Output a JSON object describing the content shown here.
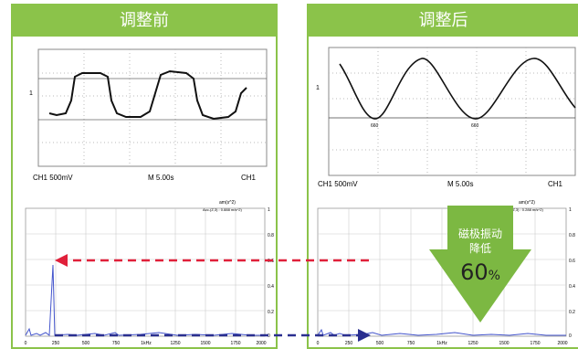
{
  "left": {
    "title": "调整前",
    "scope": {
      "channel": "CH1  500mV",
      "time": "M 5.00s",
      "trigger": "CH1",
      "marker": "1"
    },
    "spectrum": {
      "unit": "am(s^2)",
      "readout": "Acc-(Z,3) : 0.888 m/s^2)",
      "y_ticks": [
        "1",
        "0.8",
        "0.6",
        "0.4",
        "0.2",
        "0"
      ],
      "x_ticks": [
        "0",
        "250",
        "500",
        "750",
        "1kHz",
        "1250",
        "1500",
        "1750",
        "2000"
      ]
    }
  },
  "right": {
    "title": "调整后",
    "scope": {
      "channel": "CH1  500mV",
      "time": "M 5.00s",
      "trigger": "CH1",
      "marker": "1",
      "annotation_a": "660",
      "annotation_b": "660"
    },
    "spectrum": {
      "unit": "am(s^2)",
      "readout": "Acc-(Z,3) : 0.288 m/s^2)",
      "y_ticks": [
        "1",
        "0.8",
        "0.6",
        "0.4",
        "0.2",
        "0"
      ],
      "x_ticks": [
        "0",
        "250",
        "500",
        "750",
        "1kHz",
        "1250",
        "1500",
        "1750",
        "2000"
      ]
    }
  },
  "callout": {
    "line1": "磁极振动",
    "line2": "降低",
    "value": "60",
    "percent": "%"
  },
  "colors": {
    "panel_border": "#8bc34a",
    "arrow_red": "#e0203a",
    "arrow_blue": "#2a2f8f",
    "callout_green": "#7cb842",
    "spectrum_line": "#4455cc"
  }
}
